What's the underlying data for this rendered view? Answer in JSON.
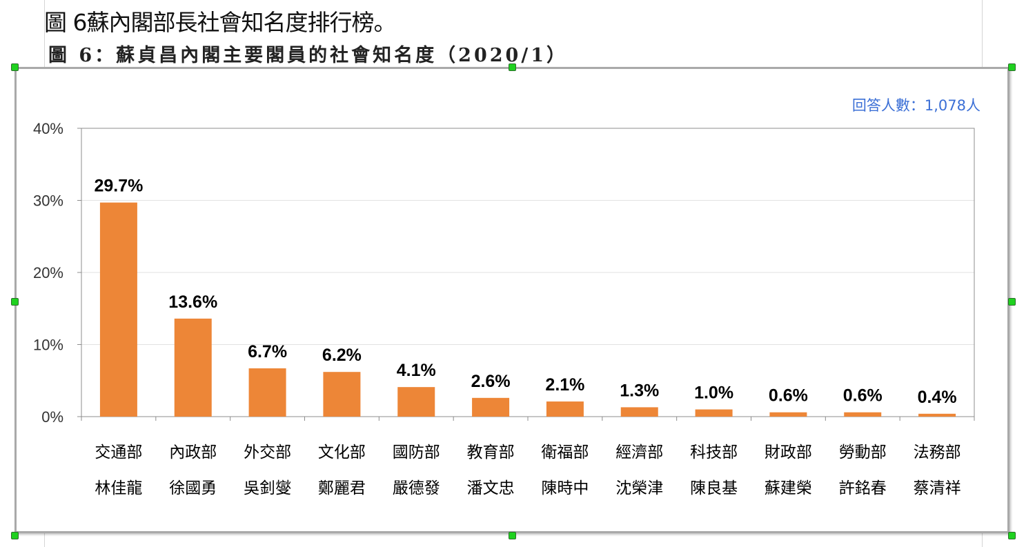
{
  "caption": {
    "title": "圖 6蘇內閣部長社會知名度排行榜。",
    "subtitle": "圖 6：蘇貞昌內閣主要閣員的社會知名度（2020/1）"
  },
  "chart_data": {
    "type": "bar",
    "note": "回答人數：1,078人",
    "note_color": "#3b6fd6",
    "bar_color": "#ed8637",
    "categories": [
      [
        "交通部",
        "林佳龍"
      ],
      [
        "內政部",
        "徐國勇"
      ],
      [
        "外交部",
        "吳釗燮"
      ],
      [
        "文化部",
        "鄭麗君"
      ],
      [
        "國防部",
        "嚴德發"
      ],
      [
        "教育部",
        "潘文忠"
      ],
      [
        "衛福部",
        "陳時中"
      ],
      [
        "經濟部",
        "沈榮津"
      ],
      [
        "科技部",
        "陳良基"
      ],
      [
        "財政部",
        "蘇建榮"
      ],
      [
        "勞動部",
        "許銘春"
      ],
      [
        "法務部",
        "蔡清祥"
      ]
    ],
    "values": [
      29.7,
      13.6,
      6.7,
      6.2,
      4.1,
      2.6,
      2.1,
      1.3,
      1.0,
      0.6,
      0.6,
      0.4
    ],
    "data_labels": [
      "29.7%",
      "13.6%",
      "6.7%",
      "6.2%",
      "4.1%",
      "2.6%",
      "2.1%",
      "1.3%",
      "1.0%",
      "0.6%",
      "0.6%",
      "0.4%"
    ],
    "ylim": [
      0,
      40
    ],
    "yticks": [
      0,
      10,
      20,
      30,
      40
    ],
    "ytick_labels": [
      "0%",
      "10%",
      "20%",
      "30%",
      "40%"
    ],
    "grid": true
  }
}
